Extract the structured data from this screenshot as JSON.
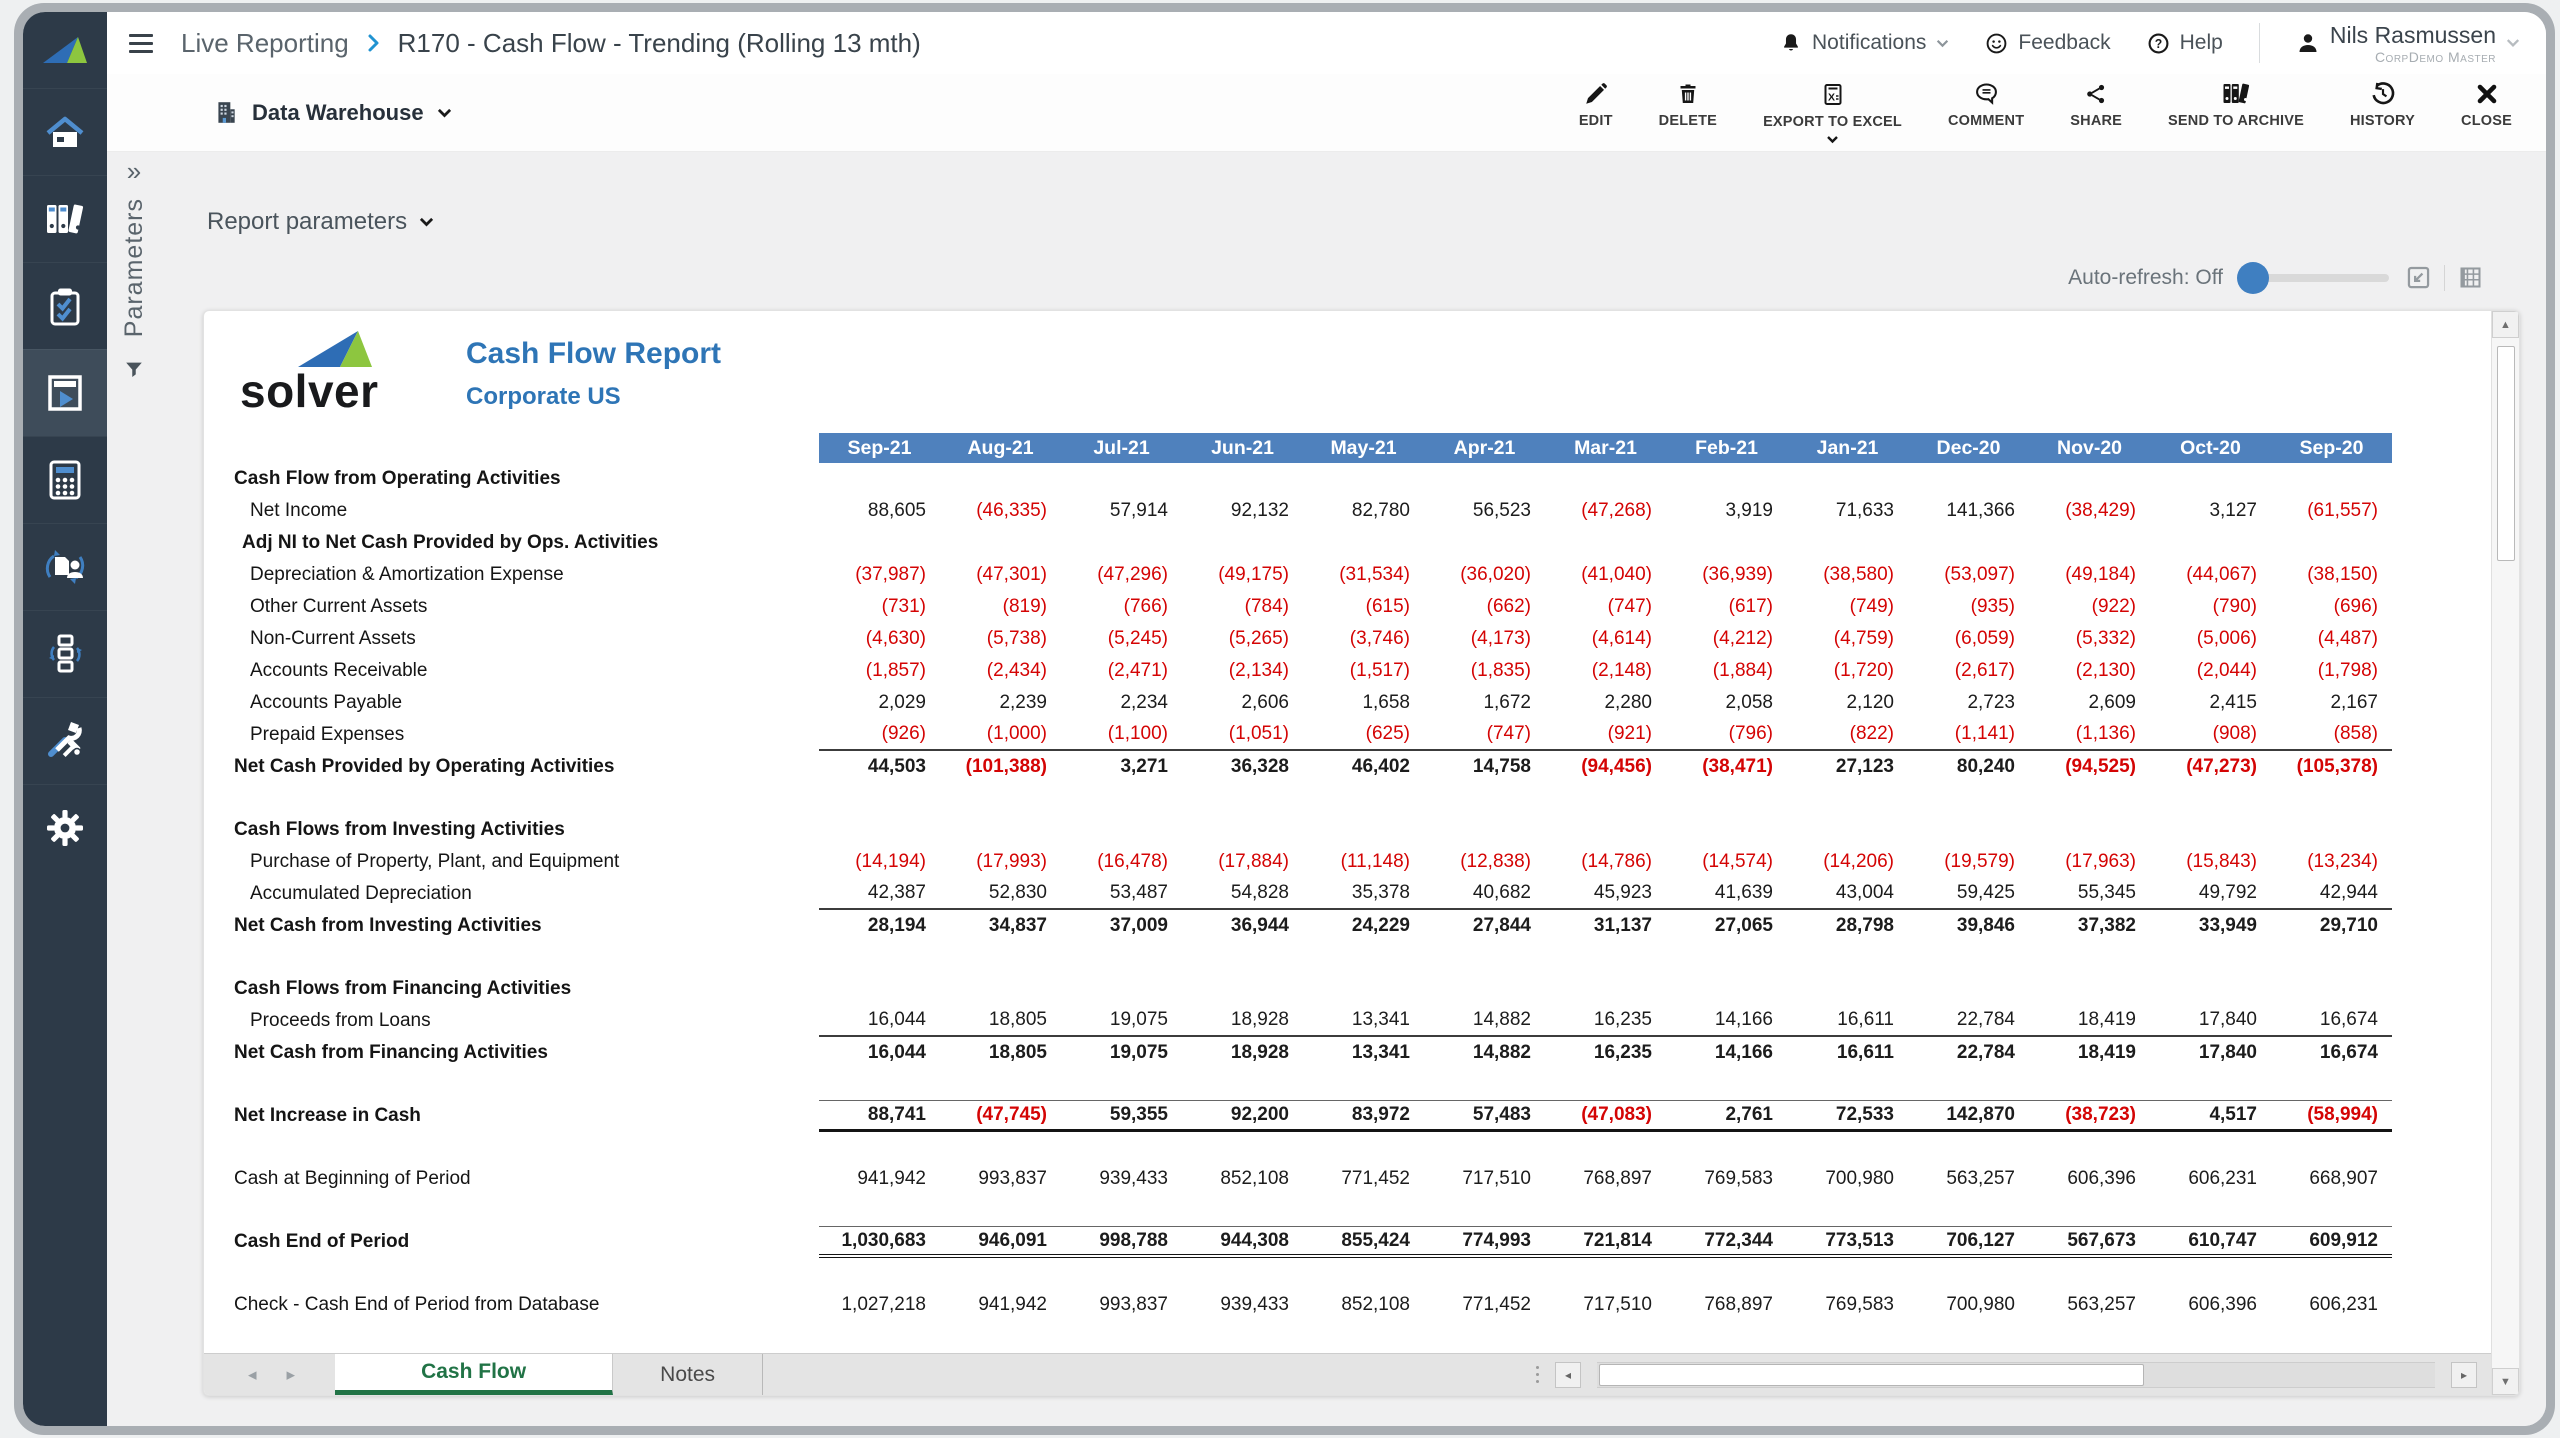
{
  "breadcrumb": {
    "section": "Live Reporting",
    "title": "R170 - Cash Flow - Trending (Rolling 13 mth)"
  },
  "topbar": {
    "notifications": "Notifications",
    "feedback": "Feedback",
    "help": "Help",
    "user_name": "Nils Rasmussen",
    "user_role": "CorpDemo Master"
  },
  "toolbar": {
    "source": "Data Warehouse",
    "actions": [
      "EDIT",
      "DELETE",
      "EXPORT TO EXCEL",
      "COMMENT",
      "SHARE",
      "SEND TO ARCHIVE",
      "HISTORY",
      "CLOSE"
    ]
  },
  "sidebar": {
    "icons": [
      "solver-logo",
      "home",
      "binders-archive",
      "checklist",
      "live-report",
      "calculator",
      "user-sync",
      "process-boxes",
      "admin-tools",
      "settings"
    ]
  },
  "params_panel": {
    "label": "Parameters"
  },
  "content": {
    "report_parameters": "Report parameters",
    "auto_refresh": "Auto-refresh: Off"
  },
  "glyphs": {
    "expand": "»",
    "prev": "◂",
    "next": "▸",
    "up": "▲",
    "down": "▼"
  },
  "tabs": {
    "active": "Cash Flow",
    "other": "Notes"
  },
  "colors": {
    "header_blue": "#4f81bd",
    "negative_red": "#d40404",
    "title_blue": "#2e75b6",
    "tab_green": "#217346",
    "sidebar_dark": "#2d3a48",
    "accent_blue": "#3f7fc1"
  },
  "report": {
    "brand": "solver",
    "title": "Cash Flow Report",
    "subtitle": "Corporate US",
    "columns": [
      "Sep-21",
      "Aug-21",
      "Jul-21",
      "Jun-21",
      "May-21",
      "Apr-21",
      "Mar-21",
      "Feb-21",
      "Jan-21",
      "Dec-20",
      "Nov-20",
      "Oct-20",
      "Sep-20"
    ],
    "rows": [
      {
        "label": "Cash Flow from Operating Activities",
        "cls": "sec"
      },
      {
        "label": "Net Income",
        "cls": "item",
        "values": [
          "88,605",
          "(46,335)",
          "57,914",
          "92,132",
          "82,780",
          "56,523",
          "(47,268)",
          "3,919",
          "71,633",
          "141,366",
          "(38,429)",
          "3,127",
          "(61,557)"
        ]
      },
      {
        "label": "Adj NI to Net Cash Provided by Ops. Activities",
        "cls": "sub"
      },
      {
        "label": "Depreciation & Amortization Expense",
        "cls": "item",
        "values": [
          "(37,987)",
          "(47,301)",
          "(47,296)",
          "(49,175)",
          "(31,534)",
          "(36,020)",
          "(41,040)",
          "(36,939)",
          "(38,580)",
          "(53,097)",
          "(49,184)",
          "(44,067)",
          "(38,150)"
        ]
      },
      {
        "label": "Other Current Assets",
        "cls": "item",
        "values": [
          "(731)",
          "(819)",
          "(766)",
          "(784)",
          "(615)",
          "(662)",
          "(747)",
          "(617)",
          "(749)",
          "(935)",
          "(922)",
          "(790)",
          "(696)"
        ]
      },
      {
        "label": "Non-Current Assets",
        "cls": "item",
        "values": [
          "(4,630)",
          "(5,738)",
          "(5,245)",
          "(5,265)",
          "(3,746)",
          "(4,173)",
          "(4,614)",
          "(4,212)",
          "(4,759)",
          "(6,059)",
          "(5,332)",
          "(5,006)",
          "(4,487)"
        ]
      },
      {
        "label": "Accounts Receivable",
        "cls": "item",
        "values": [
          "(1,857)",
          "(2,434)",
          "(2,471)",
          "(2,134)",
          "(1,517)",
          "(1,835)",
          "(2,148)",
          "(1,884)",
          "(1,720)",
          "(2,617)",
          "(2,130)",
          "(2,044)",
          "(1,798)"
        ]
      },
      {
        "label": "Accounts Payable",
        "cls": "item",
        "values": [
          "2,029",
          "2,239",
          "2,234",
          "2,606",
          "1,658",
          "1,672",
          "2,280",
          "2,058",
          "2,120",
          "2,723",
          "2,609",
          "2,415",
          "2,167"
        ]
      },
      {
        "label": "Prepaid Expenses",
        "cls": "item u",
        "values": [
          "(926)",
          "(1,000)",
          "(1,100)",
          "(1,051)",
          "(625)",
          "(747)",
          "(921)",
          "(796)",
          "(822)",
          "(1,141)",
          "(1,136)",
          "(908)",
          "(858)"
        ]
      },
      {
        "label": "Net Cash Provided by Operating Activities",
        "cls": "tot",
        "values": [
          "44,503",
          "(101,388)",
          "3,271",
          "36,328",
          "46,402",
          "14,758",
          "(94,456)",
          "(38,471)",
          "27,123",
          "80,240",
          "(94,525)",
          "(47,273)",
          "(105,378)"
        ]
      },
      {
        "cls": "sp"
      },
      {
        "label": "Cash Flows from Investing Activities",
        "cls": "sec"
      },
      {
        "label": "Purchase of Property, Plant, and Equipment",
        "cls": "item",
        "values": [
          "(14,194)",
          "(17,993)",
          "(16,478)",
          "(17,884)",
          "(11,148)",
          "(12,838)",
          "(14,786)",
          "(14,574)",
          "(14,206)",
          "(19,579)",
          "(17,963)",
          "(15,843)",
          "(13,234)"
        ]
      },
      {
        "label": "Accumulated Depreciation",
        "cls": "item u",
        "values": [
          "42,387",
          "52,830",
          "53,487",
          "54,828",
          "35,378",
          "40,682",
          "45,923",
          "41,639",
          "43,004",
          "59,425",
          "55,345",
          "49,792",
          "42,944"
        ]
      },
      {
        "label": "Net Cash from Investing Activities",
        "cls": "tot",
        "values": [
          "28,194",
          "34,837",
          "37,009",
          "36,944",
          "24,229",
          "27,844",
          "31,137",
          "27,065",
          "28,798",
          "39,846",
          "37,382",
          "33,949",
          "29,710"
        ]
      },
      {
        "cls": "sp"
      },
      {
        "label": "Cash Flows from Financing Activities",
        "cls": "sec"
      },
      {
        "label": "Proceeds from Loans",
        "cls": "item u",
        "values": [
          "16,044",
          "18,805",
          "19,075",
          "18,928",
          "13,341",
          "14,882",
          "16,235",
          "14,166",
          "16,611",
          "22,784",
          "18,419",
          "17,840",
          "16,674"
        ]
      },
      {
        "label": "Net Cash from Financing Activities",
        "cls": "tot",
        "values": [
          "16,044",
          "18,805",
          "19,075",
          "18,928",
          "13,341",
          "14,882",
          "16,235",
          "14,166",
          "16,611",
          "22,784",
          "18,419",
          "17,840",
          "16,674"
        ]
      },
      {
        "cls": "sp"
      },
      {
        "label": "Net Increase in Cash",
        "cls": "ni",
        "values": [
          "88,741",
          "(47,745)",
          "59,355",
          "92,200",
          "83,972",
          "57,483",
          "(47,083)",
          "2,761",
          "72,533",
          "142,870",
          "(38,723)",
          "4,517",
          "(58,994)"
        ]
      },
      {
        "cls": "sp"
      },
      {
        "label": "Cash at Beginning of Period",
        "cls": "plain",
        "values": [
          "941,942",
          "993,837",
          "939,433",
          "852,108",
          "771,452",
          "717,510",
          "768,897",
          "769,583",
          "700,980",
          "563,257",
          "606,396",
          "606,231",
          "668,907"
        ]
      },
      {
        "cls": "sp"
      },
      {
        "label": "Cash End of Period",
        "cls": "end",
        "values": [
          "1,030,683",
          "946,091",
          "998,788",
          "944,308",
          "855,424",
          "774,993",
          "721,814",
          "772,344",
          "773,513",
          "706,127",
          "567,673",
          "610,747",
          "609,912"
        ]
      },
      {
        "cls": "sp"
      },
      {
        "label": "Check - Cash End of Period from Database",
        "cls": "chk",
        "values": [
          "1,027,218",
          "941,942",
          "993,837",
          "939,433",
          "852,108",
          "771,452",
          "717,510",
          "768,897",
          "769,583",
          "700,980",
          "563,257",
          "606,396",
          "606,231"
        ]
      }
    ]
  }
}
